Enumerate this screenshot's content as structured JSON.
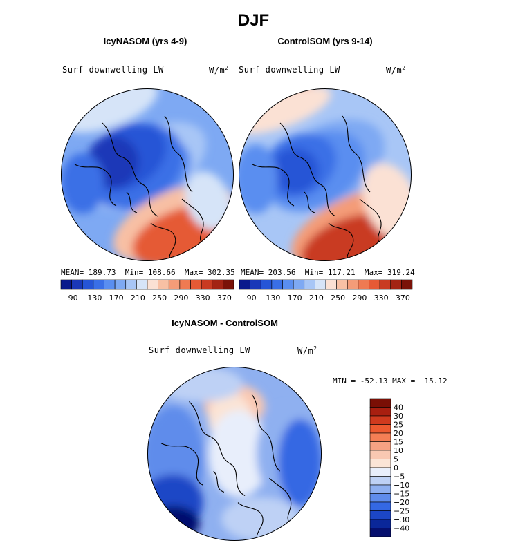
{
  "figure": {
    "title": "DJF"
  },
  "chart_data": [
    {
      "type": "heatmap",
      "projection": "north-polar-stereographic",
      "title": "IcyNASOM (yrs 4-9)",
      "variable": "Surf downwelling LW",
      "units_base": "W/m",
      "units_exp": "2",
      "stats": {
        "mean_label": "MEAN=",
        "mean": "189.73",
        "min_label": "Min=",
        "min": "108.66",
        "max_label": "Max=",
        "max": "302.35"
      },
      "colorbar": {
        "orientation": "horizontal",
        "tick_labels": [
          "90",
          "130",
          "170",
          "210",
          "250",
          "290",
          "330",
          "370"
        ],
        "levels": [
          90,
          110,
          130,
          150,
          170,
          190,
          210,
          230,
          250,
          270,
          290,
          310,
          330,
          350,
          370
        ]
      }
    },
    {
      "type": "heatmap",
      "projection": "north-polar-stereographic",
      "title": "ControlSOM (yrs 9-14)",
      "variable": "Surf downwelling LW",
      "units_base": "W/m",
      "units_exp": "2",
      "stats": {
        "mean_label": "MEAN=",
        "mean": "203.56",
        "min_label": "Min=",
        "min": "117.21",
        "max_label": "Max=",
        "max": "319.24"
      },
      "colorbar": {
        "orientation": "horizontal",
        "tick_labels": [
          "90",
          "130",
          "170",
          "210",
          "250",
          "290",
          "330",
          "370"
        ],
        "levels": [
          90,
          110,
          130,
          150,
          170,
          190,
          210,
          230,
          250,
          270,
          290,
          310,
          330,
          350,
          370
        ]
      }
    },
    {
      "type": "heatmap",
      "projection": "north-polar-stereographic",
      "title": "IcyNASOM - ControlSOM",
      "variable": "Surf downwelling LW",
      "units_base": "W/m",
      "units_exp": "2",
      "stats": {
        "min_label": "MIN =",
        "min": "-52.13",
        "max_label": "MAX =",
        "max": "15.12"
      },
      "colorbar": {
        "orientation": "vertical",
        "tick_labels": [
          "40",
          "30",
          "25",
          "20",
          "15",
          "10",
          "5",
          "0",
          "−5",
          "−10",
          "−15",
          "−20",
          "−25",
          "−30",
          "−40"
        ]
      }
    }
  ],
  "palettes": {
    "sequential": [
      "#0a1a8c",
      "#1a38b8",
      "#2655d6",
      "#3a6fe6",
      "#5a8ef0",
      "#7ea9f3",
      "#a8c6f6",
      "#d6e4f8",
      "#fbe1d4",
      "#f8c0a4",
      "#f49c78",
      "#ef7a52",
      "#e55a35",
      "#c93b22",
      "#a32414",
      "#7a1208"
    ],
    "diverging": [
      "#7a0f05",
      "#a81f10",
      "#cf3a1e",
      "#ec5a30",
      "#f47f55",
      "#f6a283",
      "#f9c8b2",
      "#fbe4d6",
      "#e8eefb",
      "#bed1f5",
      "#8fb0f0",
      "#5f8ceb",
      "#3468e3",
      "#1c46c6",
      "#0a2799",
      "#050f6e"
    ]
  }
}
